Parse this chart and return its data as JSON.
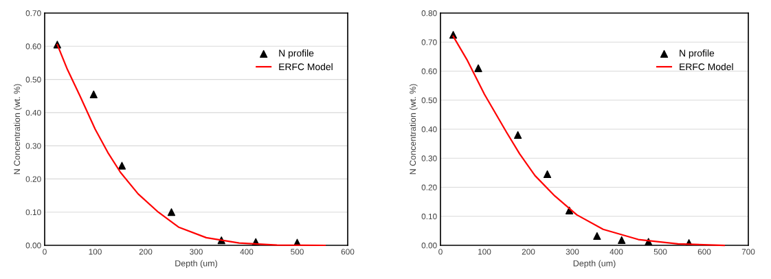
{
  "chart_data": [
    {
      "type": "scatter",
      "xlabel": "Depth (um)",
      "ylabel": "N Concentration (wt. %)",
      "xlim": [
        0,
        600
      ],
      "xticks": [
        0,
        100,
        200,
        300,
        400,
        500,
        600
      ],
      "ylim": [
        0,
        0.7
      ],
      "yticks": [
        {
          "value": 0,
          "label": "0.00"
        },
        {
          "value": 0.1,
          "label": "0.10"
        },
        {
          "value": 0.2,
          "label": "0.20"
        },
        {
          "value": 0.3,
          "label": "0.30"
        },
        {
          "value": 0.4,
          "label": "0.40"
        },
        {
          "value": 0.5,
          "label": "0.50"
        },
        {
          "value": 0.6,
          "label": "0.60"
        },
        {
          "value": 0.7,
          "label": "0.70"
        }
      ],
      "grid": "y",
      "legend": "top right",
      "series": [
        {
          "name": "N profile",
          "marker": "triangle",
          "color": "#000000",
          "x": [
            25,
            97,
            153,
            251,
            350,
            418,
            500
          ],
          "values": [
            0.605,
            0.455,
            0.24,
            0.1,
            0.015,
            0.01,
            0.008
          ]
        },
        {
          "name": "ERFC Model",
          "type": "line",
          "color": "#ff0000",
          "x": [
            25,
            45,
            70,
            100,
            125,
            150,
            185,
            225,
            265,
            320,
            385,
            460,
            555
          ],
          "values": [
            0.605,
            0.53,
            0.45,
            0.35,
            0.28,
            0.22,
            0.155,
            0.1,
            0.055,
            0.023,
            0.007,
            0.001,
            0.0
          ]
        }
      ]
    },
    {
      "type": "scatter",
      "xlabel": "Depth (um)",
      "ylabel": "N Concentration (wt. %)",
      "xlim": [
        0,
        700
      ],
      "xticks": [
        0,
        100,
        200,
        300,
        400,
        500,
        600,
        700
      ],
      "ylim": [
        0,
        0.8
      ],
      "yticks": [
        {
          "value": 0,
          "label": "0.00"
        },
        {
          "value": 0.1,
          "label": "0.10"
        },
        {
          "value": 0.2,
          "label": "0.20"
        },
        {
          "value": 0.3,
          "label": "0.30"
        },
        {
          "value": 0.4,
          "label": "0.40"
        },
        {
          "value": 0.5,
          "label": "0.50"
        },
        {
          "value": 0.6,
          "label": "0.60"
        },
        {
          "value": 0.7,
          "label": "0.70"
        },
        {
          "value": 0.8,
          "label": "0.80"
        }
      ],
      "grid": "y",
      "legend": "top right",
      "series": [
        {
          "name": "N profile",
          "marker": "triangle",
          "color": "#000000",
          "x": [
            29,
            86,
            176,
            243,
            293,
            356,
            412,
            473,
            565
          ],
          "values": [
            0.725,
            0.61,
            0.38,
            0.245,
            0.12,
            0.032,
            0.018,
            0.012,
            0.008
          ]
        },
        {
          "name": "ERFC Model",
          "type": "line",
          "color": "#ff0000",
          "x": [
            29,
            60,
            100,
            150,
            180,
            215,
            260,
            310,
            370,
            450,
            540,
            645
          ],
          "values": [
            0.72,
            0.64,
            0.52,
            0.39,
            0.315,
            0.24,
            0.17,
            0.105,
            0.055,
            0.02,
            0.005,
            0.0
          ]
        }
      ]
    }
  ]
}
